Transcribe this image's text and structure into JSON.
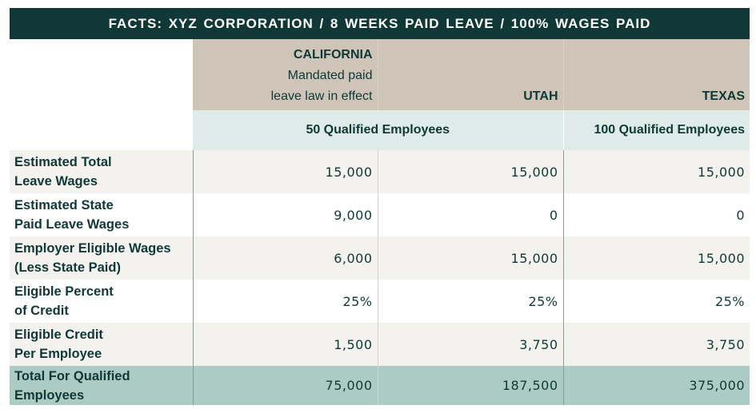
{
  "title": "FACTS:  XYZ CORPORATION / 8 WEEKS PAID LEAVE / 100% WAGES PAID",
  "columns": [
    {
      "state": "CALIFORNIA",
      "note_line1": "Mandated paid",
      "note_line2": "leave law in effect"
    },
    {
      "state": "UTAH"
    },
    {
      "state": "TEXAS"
    }
  ],
  "employees": {
    "ca_ut": "50 Qualified Employees",
    "tx": "100 Qualified Employees"
  },
  "rows": [
    {
      "label1": "Estimated Total",
      "label2": "Leave Wages",
      "values": [
        "15,000",
        "15,000",
        "15,000"
      ]
    },
    {
      "label1": "Estimated State",
      "label2": "Paid Leave Wages",
      "values": [
        "9,000",
        "0",
        "0"
      ]
    },
    {
      "label1": "Employer Eligible Wages",
      "label2": "(Less State Paid)",
      "values": [
        "6,000",
        "15,000",
        "15,000"
      ]
    },
    {
      "label1": "Eligible Percent",
      "label2": "of Credit",
      "values": [
        "25%",
        "25%",
        "25%"
      ]
    },
    {
      "label1": "Eligible Credit",
      "label2": "Per Employee",
      "values": [
        "1,500",
        "3,750",
        "3,750"
      ]
    },
    {
      "label1": "Total For Qualified",
      "label2": "Employees",
      "values": [
        "75,000",
        "187,500",
        "375,000"
      ]
    }
  ],
  "colors": {
    "title_bg": "#0f3837",
    "header_bg": "#cec5b8",
    "employees_bg": "#deebe8",
    "alt_row": "#f3f2ee",
    "total_row": "#adcbc5"
  }
}
